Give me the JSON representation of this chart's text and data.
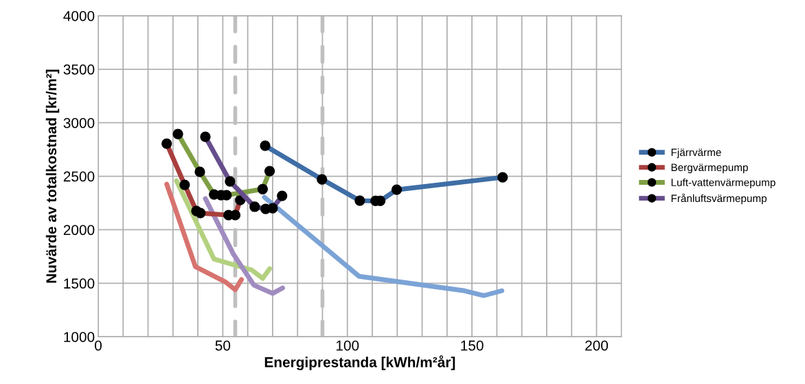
{
  "chart_data": {
    "type": "line",
    "xlabel": "Energiprestanda [kWh/m²år]",
    "ylabel": "Nuvärde av totalkostnad [kr/m²]",
    "xlim": [
      0,
      210
    ],
    "ylim": [
      1000,
      4000
    ],
    "xticks": [
      0,
      {
        "value": 10,
        "label": null
      },
      {
        "value": 20,
        "label": null
      },
      {
        "value": 30,
        "label": null
      },
      {
        "value": 40,
        "label": null
      },
      50,
      {
        "value": 60,
        "label": null
      },
      {
        "value": 70,
        "label": null
      },
      {
        "value": 80,
        "label": null
      },
      {
        "value": 90,
        "label": null
      },
      100,
      {
        "value": 110,
        "label": null
      },
      {
        "value": 120,
        "label": null
      },
      {
        "value": 130,
        "label": null
      },
      {
        "value": 140,
        "label": null
      },
      150,
      {
        "value": 160,
        "label": null
      },
      {
        "value": 170,
        "label": null
      },
      {
        "value": 180,
        "label": null
      },
      {
        "value": 190,
        "label": null
      },
      200,
      {
        "value": 210,
        "label": null
      }
    ],
    "yticks": [
      1000,
      1500,
      2000,
      2500,
      3000,
      3500,
      4000
    ],
    "grid": true,
    "legend": "right",
    "line_style": "solid",
    "series": [
      {
        "name": "Fjärrvärme",
        "color": "#3f6ea6",
        "marker": "circle",
        "x": [
          67,
          89.8,
          105,
          111.3,
          113.2,
          119.8,
          162.3
        ],
        "values": [
          2785,
          2471,
          2272,
          2270,
          2270,
          2374,
          2490
        ]
      },
      {
        "name": "Bergvärmepump",
        "color": "#a83f3d",
        "marker": "circle",
        "x": [
          27.5,
          34.7,
          39.4,
          41,
          52.3,
          55,
          57
        ],
        "values": [
          2805,
          2420,
          2175,
          2156,
          2137,
          2137,
          2278
        ]
      },
      {
        "name": "Luft-vattenvärmepump",
        "color": "#7f9f45",
        "marker": "circle",
        "x": [
          32,
          40.8,
          46.5,
          49.3,
          51.5,
          66,
          68.8
        ],
        "values": [
          2895,
          2541,
          2330,
          2323,
          2323,
          2380,
          2548
        ]
      },
      {
        "name": "Frånluftsvärmepump",
        "color": "#664e8c",
        "marker": "circle",
        "x": [
          43,
          52.9,
          62.8,
          67.2,
          70,
          73.8
        ],
        "values": [
          2869,
          2452,
          2215,
          2195,
          2201,
          2317
        ]
      },
      {
        "color": "#7ba3d6",
        "marker": "none",
        "x": [
          66.7,
          104.7,
          147,
          154.8,
          162
        ],
        "values": [
          2304,
          1565,
          1430,
          1385,
          1430
        ]
      },
      {
        "color": "#d7736f",
        "marker": "none",
        "x": [
          27.5,
          39,
          51,
          55,
          57.5
        ],
        "values": [
          2426,
          1655,
          1513,
          1440,
          1535
        ]
      },
      {
        "color": "#b3d17f",
        "marker": "none",
        "x": [
          31.4,
          46.5,
          61.6,
          66,
          68.8
        ],
        "values": [
          2458,
          1726,
          1624,
          1545,
          1636
        ]
      },
      {
        "color": "#a08cc0",
        "marker": "none",
        "x": [
          43,
          54.3,
          62.5,
          70,
          74
        ],
        "values": [
          2291,
          1771,
          1482,
          1405,
          1456
        ]
      }
    ],
    "ref_lines": [
      {
        "axis": "x",
        "value": 55,
        "color": "#bfbfbf",
        "line_style": "dashed"
      },
      {
        "axis": "x",
        "value": 90,
        "color": "#bfbfbf",
        "line_style": "dashed"
      }
    ]
  }
}
